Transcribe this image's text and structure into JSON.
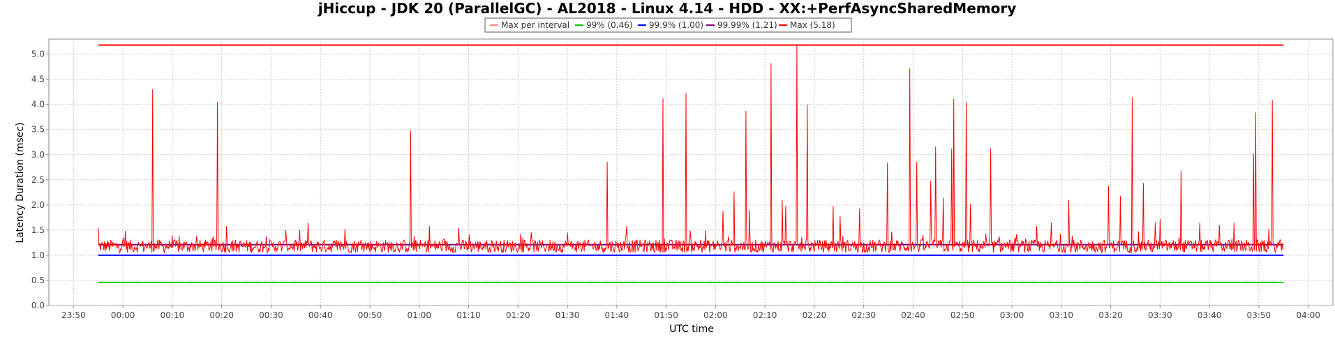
{
  "chart_data": {
    "type": "line",
    "title": "jHiccup - JDK 20 (ParallelGC) - AL2018 - Linux 4.14 - HDD - XX:+PerfAsyncSharedMemory",
    "xlabel": "UTC time",
    "ylabel": "Latency Duration (msec)",
    "ylim": [
      0,
      5.3
    ],
    "yticks": [
      "0.0",
      "0.5",
      "1.0",
      "1.5",
      "2.0",
      "2.5",
      "3.0",
      "3.5",
      "4.0",
      "4.5",
      "5.0"
    ],
    "xticks": [
      "23:50",
      "00:00",
      "00:10",
      "00:20",
      "00:30",
      "00:40",
      "00:50",
      "01:00",
      "01:10",
      "01:20",
      "01:30",
      "01:40",
      "01:50",
      "02:00",
      "02:10",
      "02:20",
      "02:30",
      "02:40",
      "02:50",
      "03:00",
      "03:10",
      "03:20",
      "03:30",
      "03:40",
      "03:50",
      "04:00"
    ],
    "x_range_minutes": [
      -15,
      245
    ],
    "data_range_minutes": [
      -5,
      235
    ],
    "grid": true,
    "legend": "top-center",
    "series": [
      {
        "name": "Max per interval",
        "color": "#ff0000",
        "baseline": 1.18,
        "spikes": [
          {
            "t": -5.0,
            "v": 1.55
          },
          {
            "t": 0.5,
            "v": 1.48
          },
          {
            "t": 6.0,
            "v": 4.3
          },
          {
            "t": 19.2,
            "v": 4.05
          },
          {
            "t": 21.0,
            "v": 1.58
          },
          {
            "t": 33.0,
            "v": 1.5
          },
          {
            "t": 37.5,
            "v": 1.65
          },
          {
            "t": 45.0,
            "v": 1.52
          },
          {
            "t": 58.2,
            "v": 3.48
          },
          {
            "t": 62.0,
            "v": 1.58
          },
          {
            "t": 68.0,
            "v": 1.55
          },
          {
            "t": 90.0,
            "v": 1.45
          },
          {
            "t": 98.0,
            "v": 2.86
          },
          {
            "t": 102.0,
            "v": 1.58
          },
          {
            "t": 109.3,
            "v": 4.12
          },
          {
            "t": 114.0,
            "v": 4.22
          },
          {
            "t": 118.0,
            "v": 1.5
          },
          {
            "t": 121.5,
            "v": 1.88
          },
          {
            "t": 123.8,
            "v": 2.27
          },
          {
            "t": 126.2,
            "v": 3.87
          },
          {
            "t": 126.8,
            "v": 1.9
          },
          {
            "t": 131.2,
            "v": 4.82
          },
          {
            "t": 133.5,
            "v": 2.1
          },
          {
            "t": 134.2,
            "v": 1.98
          },
          {
            "t": 136.5,
            "v": 5.18
          },
          {
            "t": 138.6,
            "v": 4.0
          },
          {
            "t": 143.8,
            "v": 1.98
          },
          {
            "t": 145.2,
            "v": 1.78
          },
          {
            "t": 149.2,
            "v": 1.93
          },
          {
            "t": 154.8,
            "v": 2.84
          },
          {
            "t": 159.3,
            "v": 4.72
          },
          {
            "t": 160.8,
            "v": 2.86
          },
          {
            "t": 163.5,
            "v": 2.48
          },
          {
            "t": 164.6,
            "v": 3.16
          },
          {
            "t": 166.1,
            "v": 2.14
          },
          {
            "t": 167.8,
            "v": 3.12
          },
          {
            "t": 168.2,
            "v": 4.11
          },
          {
            "t": 170.7,
            "v": 4.05
          },
          {
            "t": 171.6,
            "v": 2.02
          },
          {
            "t": 175.7,
            "v": 3.13
          },
          {
            "t": 185.0,
            "v": 1.58
          },
          {
            "t": 188.0,
            "v": 1.65
          },
          {
            "t": 191.5,
            "v": 2.1
          },
          {
            "t": 199.5,
            "v": 2.38
          },
          {
            "t": 202.0,
            "v": 2.18
          },
          {
            "t": 204.3,
            "v": 4.14
          },
          {
            "t": 206.6,
            "v": 2.44
          },
          {
            "t": 209.0,
            "v": 1.65
          },
          {
            "t": 210.0,
            "v": 1.72
          },
          {
            "t": 214.3,
            "v": 2.68
          },
          {
            "t": 218.0,
            "v": 1.65
          },
          {
            "t": 222.0,
            "v": 1.6
          },
          {
            "t": 225.0,
            "v": 1.65
          },
          {
            "t": 229.0,
            "v": 3.02
          },
          {
            "t": 229.3,
            "v": 3.84
          },
          {
            "t": 232.8,
            "v": 4.09
          }
        ]
      },
      {
        "name": "99% (0.46)",
        "color": "#00cc00",
        "value": 0.46
      },
      {
        "name": "99.9% (1.00)",
        "color": "#0000ff",
        "value": 1.0
      },
      {
        "name": "99.99% (1.21)",
        "color": "#800080",
        "value": 1.21
      },
      {
        "name": "Max (5.18)",
        "color": "#ff0000",
        "value": 5.18
      }
    ]
  }
}
